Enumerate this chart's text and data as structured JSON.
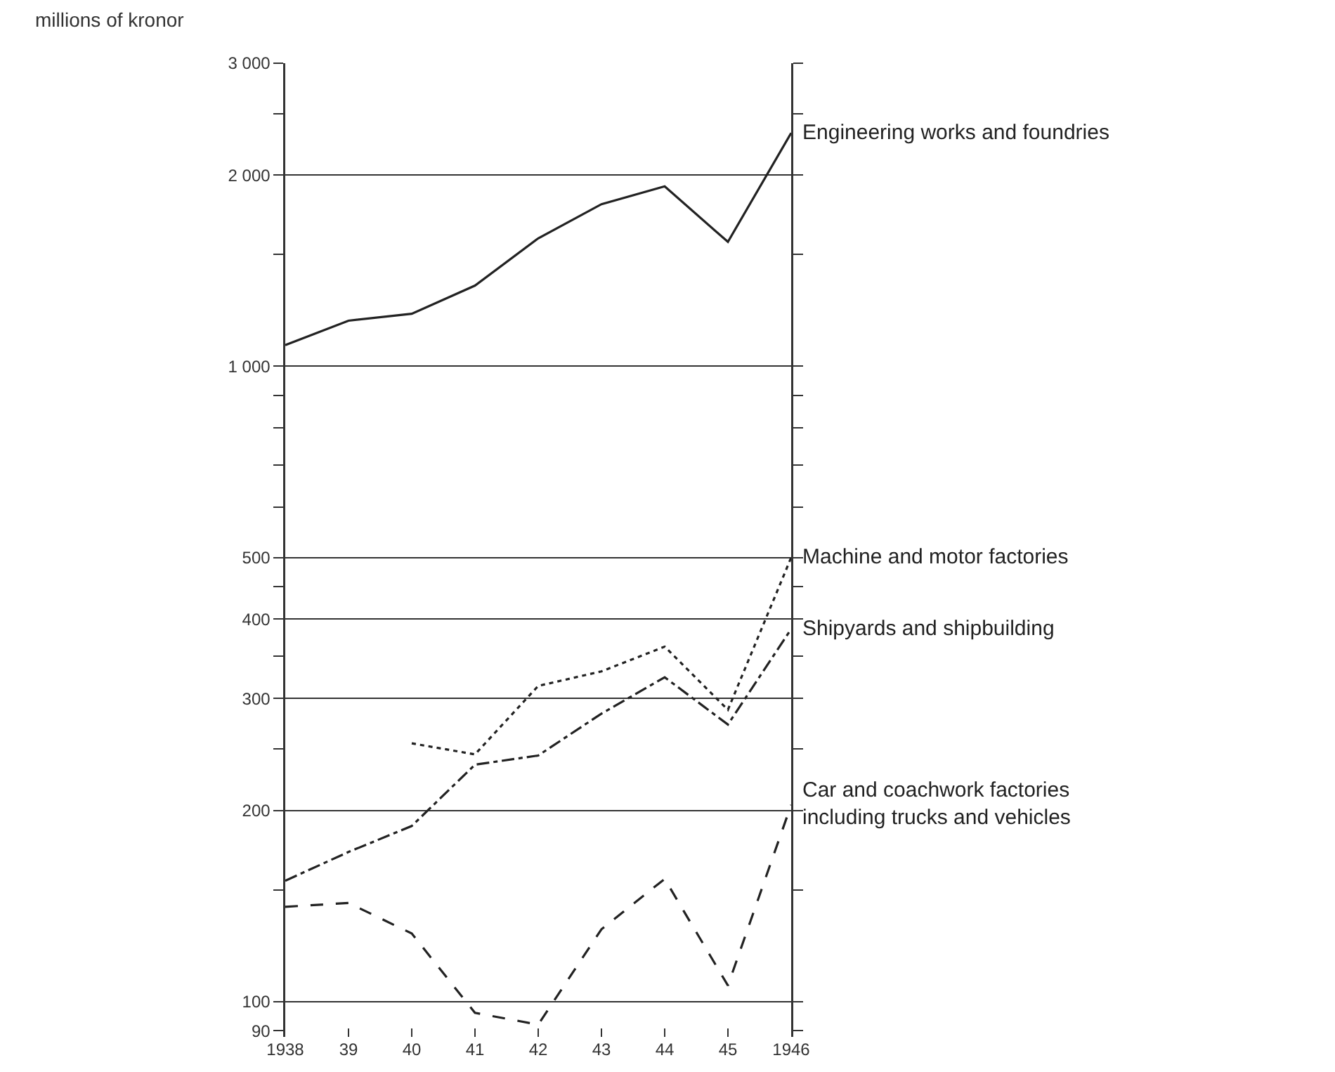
{
  "chart_data": {
    "type": "line",
    "ylabel": "millions of kronor",
    "x": [
      1938,
      1939,
      1940,
      1941,
      1942,
      1943,
      1944,
      1945,
      1946
    ],
    "xlim": [
      1938,
      1946
    ],
    "xticks": [
      {
        "value": 1938,
        "label": "1938"
      },
      {
        "value": 1939,
        "label": "39"
      },
      {
        "value": 1940,
        "label": "40"
      },
      {
        "value": 1941,
        "label": "41"
      },
      {
        "value": 1942,
        "label": "42"
      },
      {
        "value": 1943,
        "label": "43"
      },
      {
        "value": 1944,
        "label": "44"
      },
      {
        "value": 1945,
        "label": "45"
      },
      {
        "value": 1946,
        "label": "1946"
      }
    ],
    "log": "y",
    "ylim": [
      88,
      3000
    ],
    "yticks": [
      90,
      100,
      {
        "value": 150,
        "label": null
      },
      200,
      {
        "value": 250,
        "label": null
      },
      300,
      {
        "value": 350,
        "label": null
      },
      400,
      {
        "value": 450,
        "label": null
      },
      500,
      {
        "value": 600,
        "label": null
      },
      {
        "value": 700,
        "label": null
      },
      {
        "value": 800,
        "label": null
      },
      {
        "value": 900,
        "label": null
      },
      {
        "value": 1000,
        "label": "1 000"
      },
      {
        "value": 1500,
        "label": null
      },
      {
        "value": 2000,
        "label": "2 000"
      },
      {
        "value": 2500,
        "label": null
      },
      {
        "value": 3000,
        "label": "3 000"
      }
    ],
    "grid": "y",
    "legend": false,
    "marker": "none",
    "series": [
      {
        "name": "Engineering works and foundries",
        "color": "#222222",
        "line_style": "solid",
        "values": [
          1080,
          1180,
          1210,
          1340,
          1590,
          1800,
          1920,
          1570,
          2330
        ]
      },
      {
        "name": "Machine and motor factories",
        "color": "#222222",
        "line_style": "dotted",
        "values": [
          null,
          null,
          255,
          245,
          314,
          331,
          362,
          288,
          500
        ]
      },
      {
        "name": "Shipyards and shipbuilding",
        "color": "#222222",
        "line_style": "dashdot",
        "values": [
          155,
          172,
          189,
          236,
          244,
          284,
          324,
          273,
          386
        ]
      },
      {
        "name": "Car and coachwork factories\nincluding trucks and vehicles",
        "color": "#222222",
        "line_style": "dashed",
        "values": [
          141,
          143,
          128,
          96,
          92,
          130,
          156,
          106,
          204
        ]
      }
    ]
  }
}
